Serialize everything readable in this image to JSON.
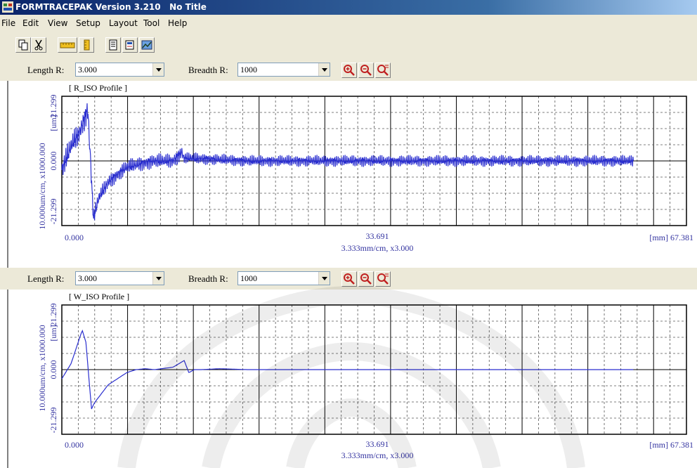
{
  "window": {
    "title": "FORMTRACEPAK Version 3.210   No Title"
  },
  "menu": [
    "File",
    "Edit",
    "View",
    "Setup",
    "Layout",
    "Tool",
    "Help"
  ],
  "toolbar": {
    "icons": [
      "copy-icon",
      "cut-icon",
      "ruler-horizontal-icon",
      "ruler-vertical-icon",
      "report-icon",
      "edit-sheet-icon",
      "graph-image-icon"
    ]
  },
  "zoom_icons": [
    "zoom-in-icon",
    "zoom-out-icon",
    "zoom-fit-icon"
  ],
  "panels": [
    {
      "length_label": "Length R:",
      "length_value": "3.000",
      "breadth_label": "Breadth R:",
      "breadth_value": "1000",
      "profile_title": "[ R_ISO Profile ]",
      "y_scale_label": "10.000um/cm, x1000.000",
      "y_unit": "[um]",
      "y_tick_top": "21.299",
      "y_tick_mid": "0.000",
      "y_tick_bot": "-21.299",
      "x_tick_left": "0.000",
      "x_tick_mid": "33.691",
      "x_tick_right": "[mm] 67.381",
      "x_scale_label": "3.333mm/cm, x3.000"
    },
    {
      "length_label": "Length R:",
      "length_value": "3.000",
      "breadth_label": "Breadth R:",
      "breadth_value": "1000",
      "profile_title": "[ W_ISO Profile ]",
      "y_scale_label": "10.000um/cm, x1000.000",
      "y_unit": "[um]",
      "y_tick_top": "21.299",
      "y_tick_mid": "0.000",
      "y_tick_bot": "-21.299",
      "x_tick_left": "0.000",
      "x_tick_mid": "33.691",
      "x_tick_right": "[mm] 67.381",
      "x_scale_label": "3.333mm/cm, x3.000"
    }
  ],
  "chart_data": [
    {
      "type": "line",
      "title": "[ R_ISO Profile ]",
      "xlabel": "3.333mm/cm, x3.000",
      "ylabel": "10.000um/cm, x1000.000 [um]",
      "xlim": [
        0,
        67.381
      ],
      "ylim": [
        -21.299,
        21.299
      ],
      "grid": true,
      "series": [
        {
          "values": [
            [
              0,
              -3
            ],
            [
              1,
              5
            ],
            [
              2,
              10
            ],
            [
              2.8,
              17
            ],
            [
              3.2,
              -6
            ],
            [
              3.4,
              -19
            ],
            [
              4,
              -12
            ],
            [
              5,
              -7
            ],
            [
              7,
              -2
            ],
            [
              10,
              0
            ],
            [
              12,
              0
            ],
            [
              13,
              3
            ],
            [
              13.1,
              1
            ],
            [
              20,
              0
            ],
            [
              30,
              0
            ],
            [
              40,
              0
            ],
            [
              50,
              0
            ],
            [
              60,
              0
            ],
            [
              67.381,
              0
            ]
          ]
        }
      ]
    },
    {
      "type": "line",
      "title": "[ W_ISO Profile ]",
      "xlabel": "3.333mm/cm, x3.000",
      "ylabel": "10.000um/cm, x1000.000 [um]",
      "xlim": [
        0,
        67.381
      ],
      "ylim": [
        -21.299,
        21.299
      ],
      "grid": true,
      "series": [
        {
          "values": [
            [
              0,
              -3
            ],
            [
              1,
              2
            ],
            [
              2.2,
              13
            ],
            [
              2.6,
              9
            ],
            [
              3.2,
              -13
            ],
            [
              3.5,
              -11
            ],
            [
              5,
              -5
            ],
            [
              7,
              -1
            ],
            [
              8,
              0
            ],
            [
              9,
              0.3
            ],
            [
              10,
              0
            ],
            [
              12,
              0.8
            ],
            [
              13.2,
              3
            ],
            [
              13.7,
              -1
            ],
            [
              14.3,
              0
            ],
            [
              15,
              0
            ],
            [
              17,
              0.3
            ],
            [
              18,
              0.2
            ],
            [
              20,
              0
            ],
            [
              30,
              0
            ],
            [
              40,
              0
            ],
            [
              50,
              0
            ],
            [
              60,
              0
            ],
            [
              67.381,
              0
            ]
          ]
        }
      ]
    }
  ],
  "colors": {
    "trace": "#2b2fcf",
    "axis_text": "#3333a0",
    "chrome": "#ece9d8",
    "title_bar": "#0a246a"
  }
}
